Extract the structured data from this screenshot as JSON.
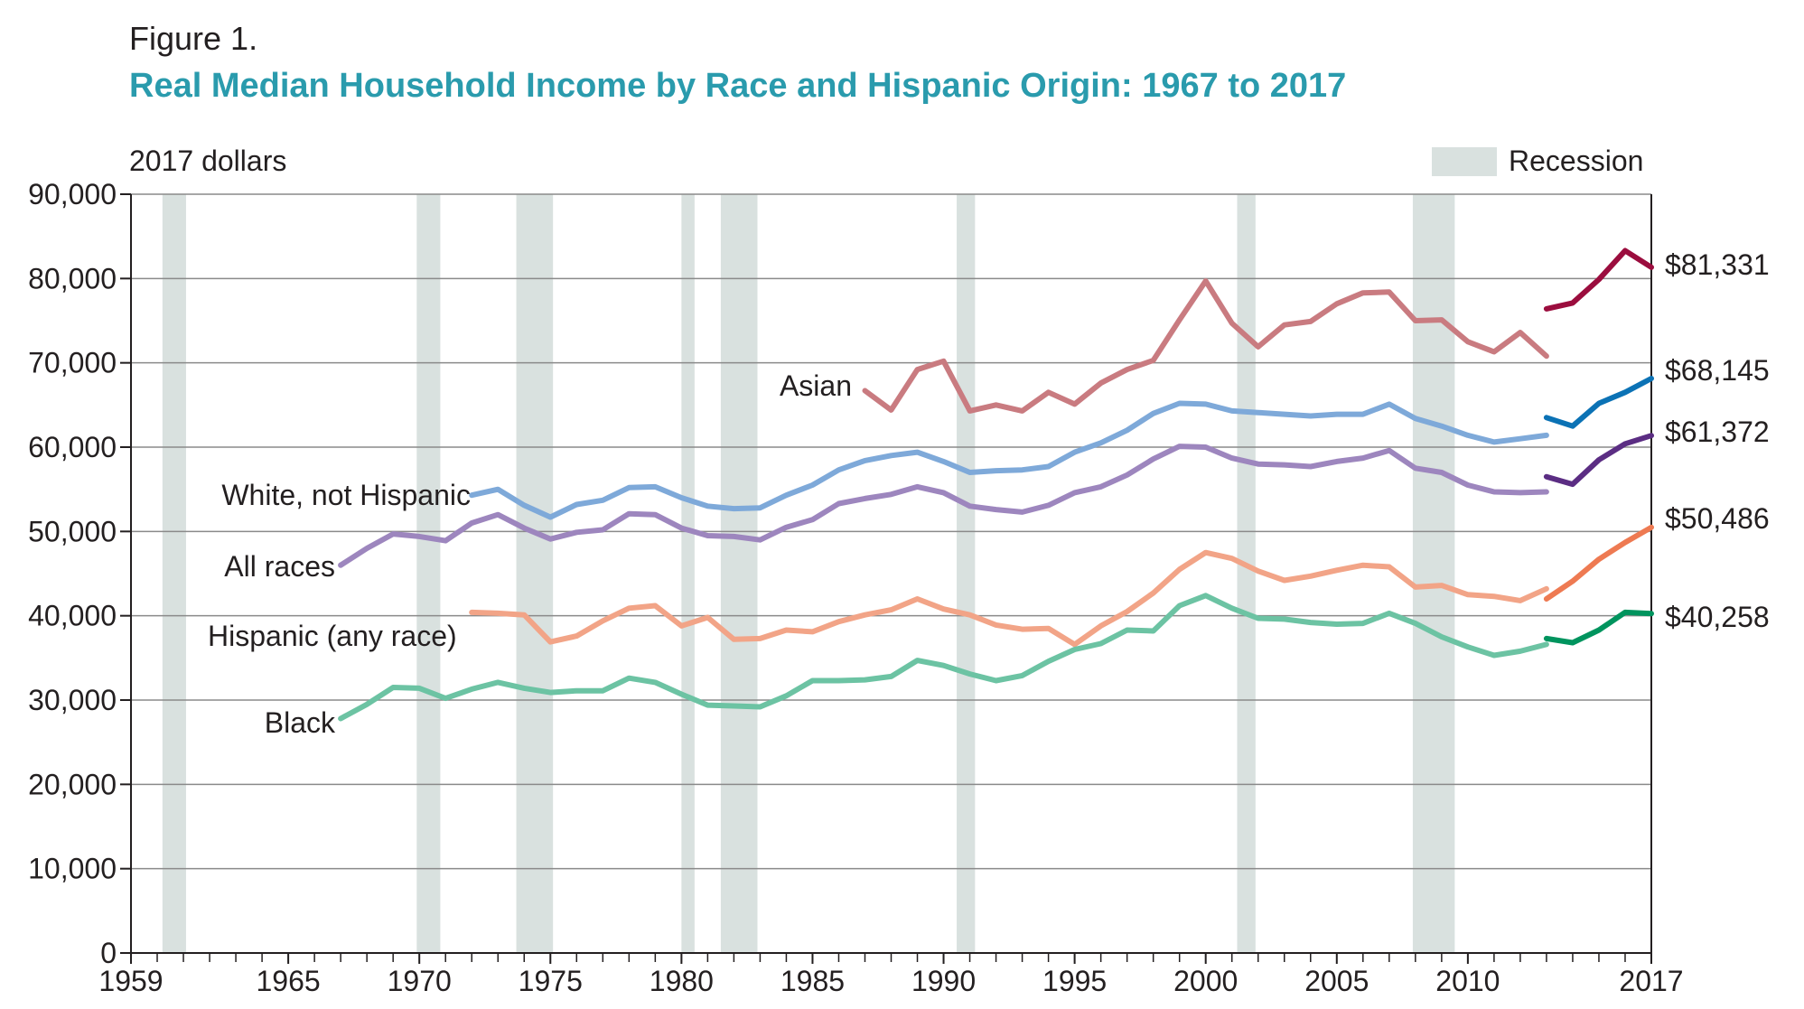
{
  "figure_label": "Figure 1.",
  "title": "Real Median Household Income by Race and Hispanic Origin: 1967 to 2017",
  "chart_data": {
    "type": "line",
    "title": "Real Median Household Income by Race and Hispanic Origin: 1967 to 2017",
    "ylabel": "2017 dollars",
    "xlabel": "",
    "xlim": [
      1959,
      2017
    ],
    "ylim": [
      0,
      90000
    ],
    "x_ticks": [
      "1959",
      "1965",
      "1970",
      "1975",
      "1980",
      "1985",
      "1990",
      "1995",
      "2000",
      "2005",
      "2010",
      "2017"
    ],
    "y_ticks": [
      "0",
      "10,000",
      "20,000",
      "30,000",
      "40,000",
      "50,000",
      "60,000",
      "70,000",
      "80,000",
      "90,000"
    ],
    "legend": {
      "label": "Recession",
      "color": "#d9e1df",
      "placement": "top-right"
    },
    "recessions": [
      [
        1960.2,
        1961.1
      ],
      [
        1969.9,
        1970.8
      ],
      [
        1973.7,
        1975.1
      ],
      [
        1980.0,
        1980.5
      ],
      [
        1981.5,
        1982.9
      ],
      [
        1990.5,
        1991.2
      ],
      [
        2001.2,
        2001.9
      ],
      [
        2007.9,
        2009.5
      ]
    ],
    "series": [
      {
        "name": "Asian",
        "label": "Asian",
        "color": "#c97b80",
        "color_recent": "#9b0d3e",
        "end_label": "$81,331",
        "x": [
          1987,
          1988,
          1989,
          1990,
          1991,
          1992,
          1993,
          1994,
          1995,
          1996,
          1997,
          1998,
          1999,
          2000,
          2001,
          2002,
          2003,
          2004,
          2005,
          2006,
          2007,
          2008,
          2009,
          2010,
          2011,
          2012,
          2013
        ],
        "values": [
          66700,
          64400,
          69200,
          70200,
          64300,
          65000,
          64300,
          66500,
          65100,
          67600,
          69200,
          70300,
          75100,
          79700,
          74700,
          71900,
          74500,
          74900,
          77000,
          78300,
          78400,
          75000,
          75100,
          72500,
          71300,
          73600,
          70800
        ],
        "recent_x": [
          2013,
          2014,
          2015,
          2016,
          2017
        ],
        "recent_values": [
          76400,
          77100,
          79900,
          83300,
          81331
        ]
      },
      {
        "name": "White, not Hispanic",
        "label": "White, not Hispanic",
        "color": "#7ea9d9",
        "color_recent": "#0b72b5",
        "end_label": "$68,145",
        "x": [
          1972,
          1973,
          1974,
          1975,
          1976,
          1977,
          1978,
          1979,
          1980,
          1981,
          1982,
          1983,
          1984,
          1985,
          1986,
          1987,
          1988,
          1989,
          1990,
          1991,
          1992,
          1993,
          1994,
          1995,
          1996,
          1997,
          1998,
          1999,
          2000,
          2001,
          2002,
          2003,
          2004,
          2005,
          2006,
          2007,
          2008,
          2009,
          2010,
          2011,
          2012,
          2013
        ],
        "values": [
          54300,
          55000,
          53100,
          51700,
          53200,
          53700,
          55200,
          55300,
          54000,
          53000,
          52700,
          52800,
          54300,
          55500,
          57300,
          58400,
          59000,
          59400,
          58300,
          57000,
          57200,
          57300,
          57700,
          59400,
          60500,
          62000,
          64000,
          65200,
          65100,
          64300,
          64100,
          63900,
          63700,
          63900,
          63900,
          65100,
          63400,
          62500,
          61400,
          60600,
          61000,
          61400
        ],
        "recent_x": [
          2013,
          2014,
          2015,
          2016,
          2017
        ],
        "recent_values": [
          63500,
          62500,
          65200,
          66500,
          68145
        ]
      },
      {
        "name": "All races",
        "label": "All races",
        "color": "#9d86be",
        "color_recent": "#5b2d83",
        "end_label": "$61,372",
        "x": [
          1967,
          1968,
          1969,
          1970,
          1971,
          1972,
          1973,
          1974,
          1975,
          1976,
          1977,
          1978,
          1979,
          1980,
          1981,
          1982,
          1983,
          1984,
          1985,
          1986,
          1987,
          1988,
          1989,
          1990,
          1991,
          1992,
          1993,
          1994,
          1995,
          1996,
          1997,
          1998,
          1999,
          2000,
          2001,
          2002,
          2003,
          2004,
          2005,
          2006,
          2007,
          2008,
          2009,
          2010,
          2011,
          2012,
          2013
        ],
        "values": [
          46000,
          48000,
          49700,
          49400,
          48900,
          51000,
          52000,
          50400,
          49100,
          49900,
          50200,
          52100,
          52000,
          50400,
          49500,
          49400,
          49000,
          50500,
          51400,
          53300,
          53900,
          54400,
          55300,
          54600,
          53000,
          52600,
          52300,
          53100,
          54600,
          55300,
          56700,
          58600,
          60100,
          60000,
          58700,
          58000,
          57900,
          57700,
          58300,
          58700,
          59600,
          57500,
          57000,
          55500,
          54700,
          54600,
          54700
        ],
        "recent_x": [
          2013,
          2014,
          2015,
          2016,
          2017
        ],
        "recent_values": [
          56500,
          55600,
          58500,
          60400,
          61372
        ]
      },
      {
        "name": "Hispanic (any race)",
        "label": "Hispanic (any race)",
        "color": "#f2a487",
        "color_recent": "#ee7a52",
        "end_label": "$50,486",
        "x": [
          1972,
          1973,
          1974,
          1975,
          1976,
          1977,
          1978,
          1979,
          1980,
          1981,
          1982,
          1983,
          1984,
          1985,
          1986,
          1987,
          1988,
          1989,
          1990,
          1991,
          1992,
          1993,
          1994,
          1995,
          1996,
          1997,
          1998,
          1999,
          2000,
          2001,
          2002,
          2003,
          2004,
          2005,
          2006,
          2007,
          2008,
          2009,
          2010,
          2011,
          2012,
          2013
        ],
        "values": [
          40400,
          40300,
          40100,
          36900,
          37600,
          39400,
          40900,
          41200,
          38800,
          39800,
          37200,
          37300,
          38300,
          38100,
          39300,
          40100,
          40700,
          42000,
          40800,
          40100,
          38900,
          38400,
          38500,
          36600,
          38800,
          40500,
          42700,
          45500,
          47500,
          46800,
          45300,
          44200,
          44700,
          45400,
          46000,
          45800,
          43400,
          43600,
          42500,
          42300,
          41800,
          43200
        ],
        "recent_x": [
          2013,
          2014,
          2015,
          2016,
          2017
        ],
        "recent_values": [
          42000,
          44100,
          46700,
          48700,
          50486
        ]
      },
      {
        "name": "Black",
        "label": "Black",
        "color": "#6cc3a3",
        "color_recent": "#00945e",
        "end_label": "$40,258",
        "x": [
          1967,
          1968,
          1969,
          1970,
          1971,
          1972,
          1973,
          1974,
          1975,
          1976,
          1977,
          1978,
          1979,
          1980,
          1981,
          1982,
          1983,
          1984,
          1985,
          1986,
          1987,
          1988,
          1989,
          1990,
          1991,
          1992,
          1993,
          1994,
          1995,
          1996,
          1997,
          1998,
          1999,
          2000,
          2001,
          2002,
          2003,
          2004,
          2005,
          2006,
          2007,
          2008,
          2009,
          2010,
          2011,
          2012,
          2013
        ],
        "values": [
          27800,
          29500,
          31500,
          31400,
          30200,
          31300,
          32100,
          31400,
          30900,
          31100,
          31100,
          32600,
          32100,
          30700,
          29400,
          29300,
          29200,
          30500,
          32300,
          32300,
          32400,
          32800,
          34700,
          34100,
          33100,
          32300,
          32900,
          34600,
          36000,
          36700,
          38300,
          38200,
          41200,
          42400,
          40900,
          39700,
          39600,
          39200,
          39000,
          39100,
          40300,
          39100,
          37500,
          36300,
          35300,
          35800,
          36600
        ],
        "recent_x": [
          2013,
          2014,
          2015,
          2016,
          2017
        ],
        "recent_values": [
          37300,
          36800,
          38300,
          40400,
          40258
        ]
      }
    ]
  }
}
